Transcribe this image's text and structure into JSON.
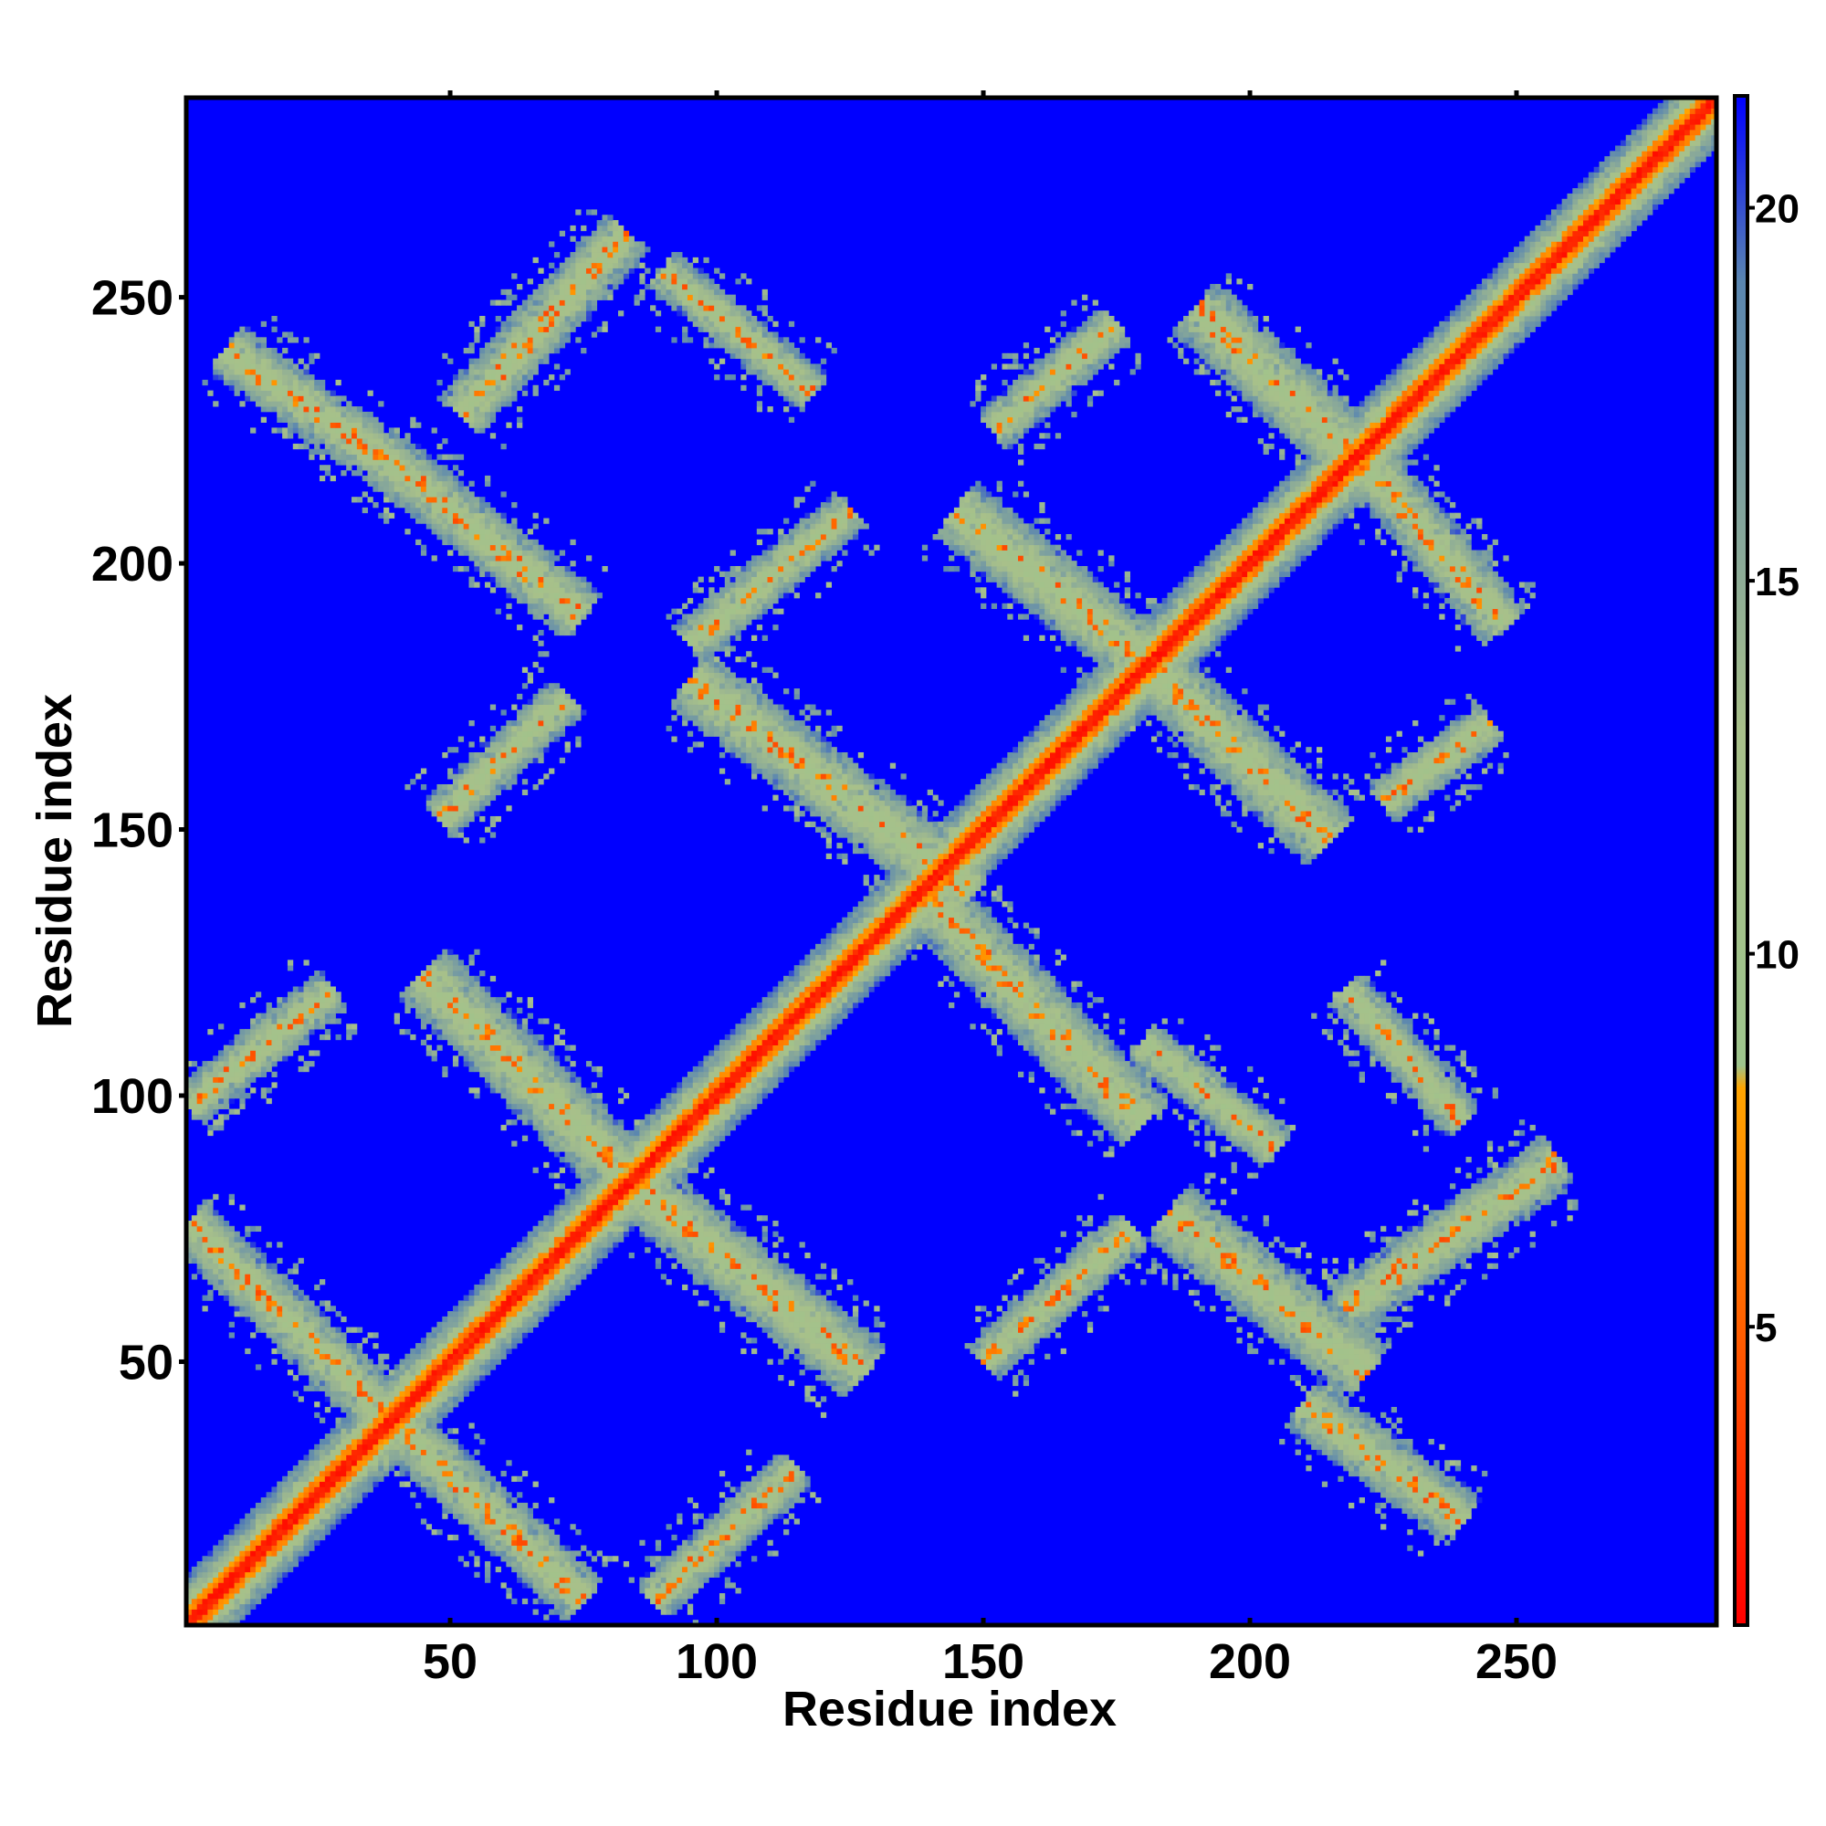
{
  "chart_data": {
    "type": "heatmap",
    "title": "",
    "xlabel": "Residue index",
    "ylabel": "Residue index",
    "n_residues": 287,
    "xlim": [
      1,
      287
    ],
    "ylim": [
      1,
      287
    ],
    "x_ticks": [
      50,
      100,
      150,
      200,
      250
    ],
    "y_ticks": [
      50,
      100,
      150,
      200,
      250
    ],
    "colorbar": {
      "range": [
        1,
        21.5
      ],
      "ticks": [
        5,
        10,
        15,
        20
      ],
      "stops": [
        {
          "value": 1,
          "color": "#ff0000"
        },
        {
          "value": 5,
          "color": "#ff6000"
        },
        {
          "value": 8.2,
          "color": "#ffa500"
        },
        {
          "value": 8.5,
          "color": "#9ec48c"
        },
        {
          "value": 13,
          "color": "#a8c08a"
        },
        {
          "value": 19,
          "color": "#5a86b0"
        },
        {
          "value": 21.5,
          "color": "#0000ff"
        }
      ]
    },
    "background_color": "#0000ff",
    "diagonal_band": {
      "core_value": 1.5,
      "halfwidth_residues": 9
    },
    "contact_bands": [
      {
        "from": [
          1,
          76
        ],
        "to": [
          38,
          40
        ],
        "halfwidth": 5
      },
      {
        "from": [
          38,
          40
        ],
        "to": [
          75,
          5
        ],
        "halfwidth": 5
      },
      {
        "from": [
          1,
          98
        ],
        "to": [
          28,
          120
        ],
        "halfwidth": 4
      },
      {
        "from": [
          45,
          123
        ],
        "to": [
          85,
          83
        ],
        "halfwidth": 6
      },
      {
        "from": [
          85,
          83
        ],
        "to": [
          128,
          48
        ],
        "halfwidth": 6
      },
      {
        "from": [
          88,
          5
        ],
        "to": [
          115,
          30
        ],
        "halfwidth": 4
      },
      {
        "from": [
          48,
          152
        ],
        "to": [
          72,
          175
        ],
        "halfwidth": 4
      },
      {
        "from": [
          8,
          240
        ],
        "to": [
          40,
          218
        ],
        "halfwidth": 5
      },
      {
        "from": [
          40,
          218
        ],
        "to": [
          75,
          190
        ],
        "halfwidth": 5
      },
      {
        "from": [
          52,
          228
        ],
        "to": [
          83,
          262
        ],
        "halfwidth": 5
      },
      {
        "from": [
          90,
          255
        ],
        "to": [
          118,
          232
        ],
        "halfwidth": 4
      },
      {
        "from": [
          95,
          185
        ],
        "to": [
          125,
          210
        ],
        "halfwidth": 4
      },
      {
        "from": [
          95,
          178
        ],
        "to": [
          148,
          138
        ],
        "halfwidth": 6
      },
      {
        "from": [
          140,
          137
        ],
        "to": [
          180,
          95
        ],
        "halfwidth": 6
      },
      {
        "from": [
          145,
          210
        ],
        "to": [
          180,
          182
        ],
        "halfwidth": 6
      },
      {
        "from": [
          180,
          182
        ],
        "to": [
          215,
          148
        ],
        "halfwidth": 6
      },
      {
        "from": [
          152,
          225
        ],
        "to": [
          175,
          245
        ],
        "halfwidth": 4
      },
      {
        "from": [
          180,
          110
        ],
        "to": [
          205,
          90
        ],
        "halfwidth": 4
      },
      {
        "from": [
          150,
          50
        ],
        "to": [
          178,
          75
        ],
        "halfwidth": 4
      },
      {
        "from": [
          185,
          78
        ],
        "to": [
          222,
          48
        ],
        "halfwidth": 6
      },
      {
        "from": [
          218,
          60
        ],
        "to": [
          258,
          88
        ],
        "halfwidth": 5
      },
      {
        "from": [
          210,
          42
        ],
        "to": [
          240,
          20
        ],
        "halfwidth": 5
      },
      {
        "from": [
          190,
          248
        ],
        "to": [
          225,
          215
        ],
        "halfwidth": 6
      },
      {
        "from": [
          225,
          215
        ],
        "to": [
          248,
          188
        ],
        "halfwidth": 5
      },
      {
        "from": [
          218,
          120
        ],
        "to": [
          240,
          95
        ],
        "halfwidth": 4
      },
      {
        "from": [
          225,
          155
        ],
        "to": [
          245,
          170
        ],
        "halfwidth": 4
      }
    ]
  }
}
